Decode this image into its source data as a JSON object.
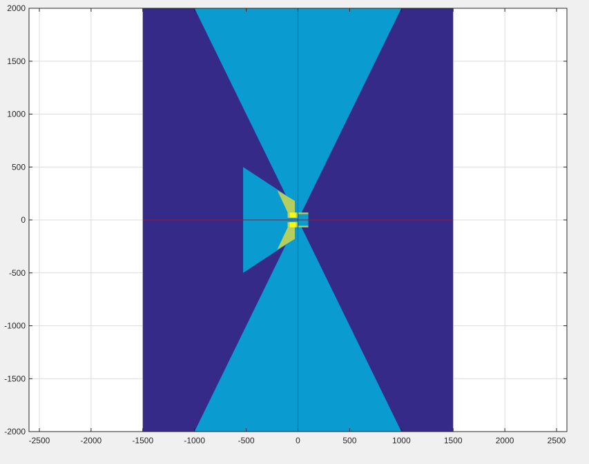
{
  "chart_data": {
    "type": "other",
    "description_kind": "2D region plot with overlaid line segments",
    "xlim": [
      -2600,
      2600
    ],
    "ylim": [
      -2000,
      2000
    ],
    "xticks": [
      -2500,
      -2000,
      -1500,
      -1000,
      -500,
      0,
      500,
      1000,
      1500,
      2000,
      2500
    ],
    "yticks": [
      -2000,
      -1500,
      -1000,
      -500,
      0,
      500,
      1000,
      1500,
      2000
    ],
    "xtick_labels": [
      "-2500",
      "-2000",
      "-1500",
      "-1000",
      "-500",
      "0",
      "500",
      "1000",
      "1500",
      "2000",
      "2500"
    ],
    "ytick_labels": [
      "-2000",
      "-1500",
      "-1000",
      "-500",
      "0",
      "500",
      "1000",
      "1500",
      "2000"
    ],
    "grid": true,
    "colors": {
      "figure_bg": "#f0f0f0",
      "axes_bg": "#ffffff",
      "grid": "#dcdcdc",
      "axis": "#262626",
      "dark_region": "#352a87",
      "light_region": "#0a9bd1",
      "yellow_green_region": "#b5cf5f",
      "yellow_region": "#f9fb0e",
      "cross_line": "#a2142f"
    },
    "regions": [
      {
        "name": "dark-background",
        "color_key": "dark_region",
        "points": [
          [
            -1500,
            -2000
          ],
          [
            1500,
            -2000
          ],
          [
            1500,
            2000
          ],
          [
            -1500,
            2000
          ]
        ]
      },
      {
        "name": "upper-cone",
        "color_key": "light_region",
        "points": [
          [
            -1000,
            2000
          ],
          [
            1000,
            2000
          ],
          [
            0,
            0
          ]
        ]
      },
      {
        "name": "lower-cone",
        "color_key": "light_region",
        "points": [
          [
            -1000,
            -2000
          ],
          [
            1000,
            -2000
          ],
          [
            0,
            0
          ]
        ]
      },
      {
        "name": "left-trapezoid",
        "color_key": "light_region",
        "points": [
          [
            -530,
            500
          ],
          [
            -30,
            180
          ],
          [
            -30,
            -180
          ],
          [
            -530,
            -500
          ]
        ]
      },
      {
        "name": "upper-overlap",
        "color_key": "yellow_green_region",
        "points": [
          [
            -200,
            280
          ],
          [
            -30,
            180
          ],
          [
            -30,
            30
          ],
          [
            -80,
            30
          ]
        ]
      },
      {
        "name": "lower-overlap",
        "color_key": "yellow_green_region",
        "points": [
          [
            -200,
            -280
          ],
          [
            -30,
            -180
          ],
          [
            -30,
            -30
          ],
          [
            -80,
            -30
          ]
        ]
      },
      {
        "name": "center-block",
        "color_key": "yellow_green_region",
        "points": [
          [
            -100,
            70
          ],
          [
            100,
            70
          ],
          [
            100,
            -70
          ],
          [
            -100,
            -70
          ]
        ]
      },
      {
        "name": "center-upper-slot",
        "color_key": "light_region",
        "points": [
          [
            0,
            55
          ],
          [
            100,
            55
          ],
          [
            100,
            20
          ],
          [
            0,
            20
          ]
        ]
      },
      {
        "name": "center-lower-slot",
        "color_key": "light_region",
        "points": [
          [
            0,
            -20
          ],
          [
            100,
            -20
          ],
          [
            100,
            -55
          ],
          [
            0,
            -55
          ]
        ]
      },
      {
        "name": "center-upper-bright",
        "color_key": "yellow_region",
        "points": [
          [
            -80,
            70
          ],
          [
            -20,
            70
          ],
          [
            -20,
            20
          ],
          [
            -80,
            20
          ]
        ]
      },
      {
        "name": "center-lower-bright",
        "color_key": "yellow_region",
        "points": [
          [
            -80,
            -20
          ],
          [
            -20,
            -20
          ],
          [
            -20,
            -70
          ],
          [
            -80,
            -70
          ]
        ]
      },
      {
        "name": "center-mid",
        "color_key": "light_region",
        "points": [
          [
            -100,
            20
          ],
          [
            100,
            20
          ],
          [
            100,
            -20
          ],
          [
            -100,
            -20
          ]
        ]
      }
    ],
    "lines": [
      {
        "name": "horizontal-axis-line",
        "color_key": "cross_line",
        "points": [
          [
            -1500,
            0
          ],
          [
            1500,
            0
          ]
        ]
      },
      {
        "name": "vertical-axis-line",
        "color_key": "cross_line",
        "points": [
          [
            0,
            -2000
          ],
          [
            0,
            2000
          ]
        ]
      }
    ]
  }
}
